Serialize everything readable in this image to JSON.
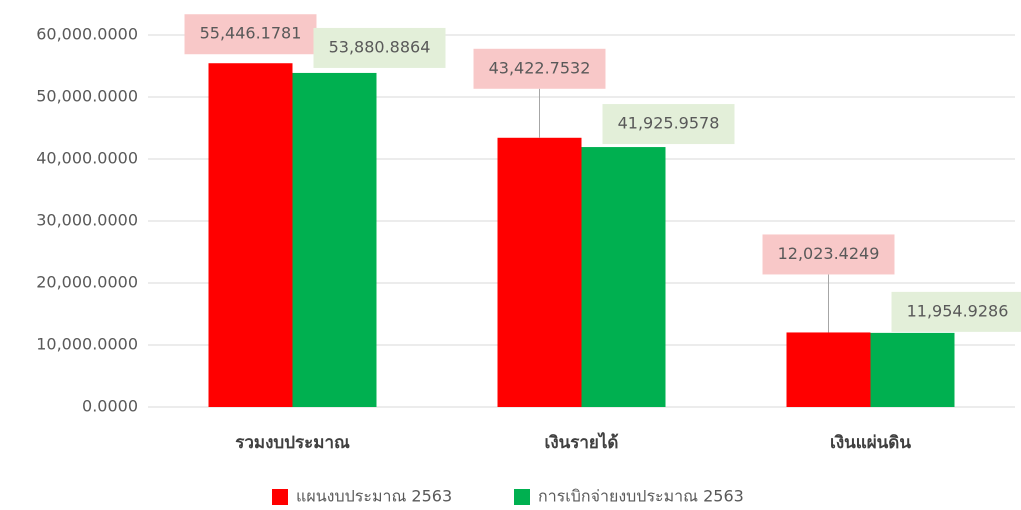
{
  "chart_data": {
    "type": "bar",
    "categories": [
      "รวมงบประมาณ",
      "เงินรายได้",
      "เงินแผ่นดิน"
    ],
    "series": [
      {
        "name": "แผนงบประมาณ 2563",
        "color": "#ff0000",
        "values": [
          55446.1781,
          43422.7532,
          12023.4249
        ],
        "value_labels": [
          "55,446.1781",
          "43,422.7532",
          "12,023.4249"
        ]
      },
      {
        "name": "การเบิกจ่ายงบประมาณ 2563",
        "color": "#00b050",
        "values": [
          53880.8864,
          41925.9578,
          11954.9286
        ],
        "value_labels": [
          "53,880.8864",
          "41,925.9578",
          "11,954.9286"
        ]
      }
    ],
    "ylim": [
      0,
      60000
    ],
    "yticks": [
      {
        "value": 0,
        "label": "0.0000"
      },
      {
        "value": 10000,
        "label": "10,000.0000"
      },
      {
        "value": 20000,
        "label": "20,000.0000"
      },
      {
        "value": 30000,
        "label": "30,000.0000"
      },
      {
        "value": 40000,
        "label": "40,000.0000"
      },
      {
        "value": 50000,
        "label": "50,000.0000"
      },
      {
        "value": 60000,
        "label": "60,000.0000"
      }
    ],
    "grid": true,
    "legend": "bottom"
  }
}
